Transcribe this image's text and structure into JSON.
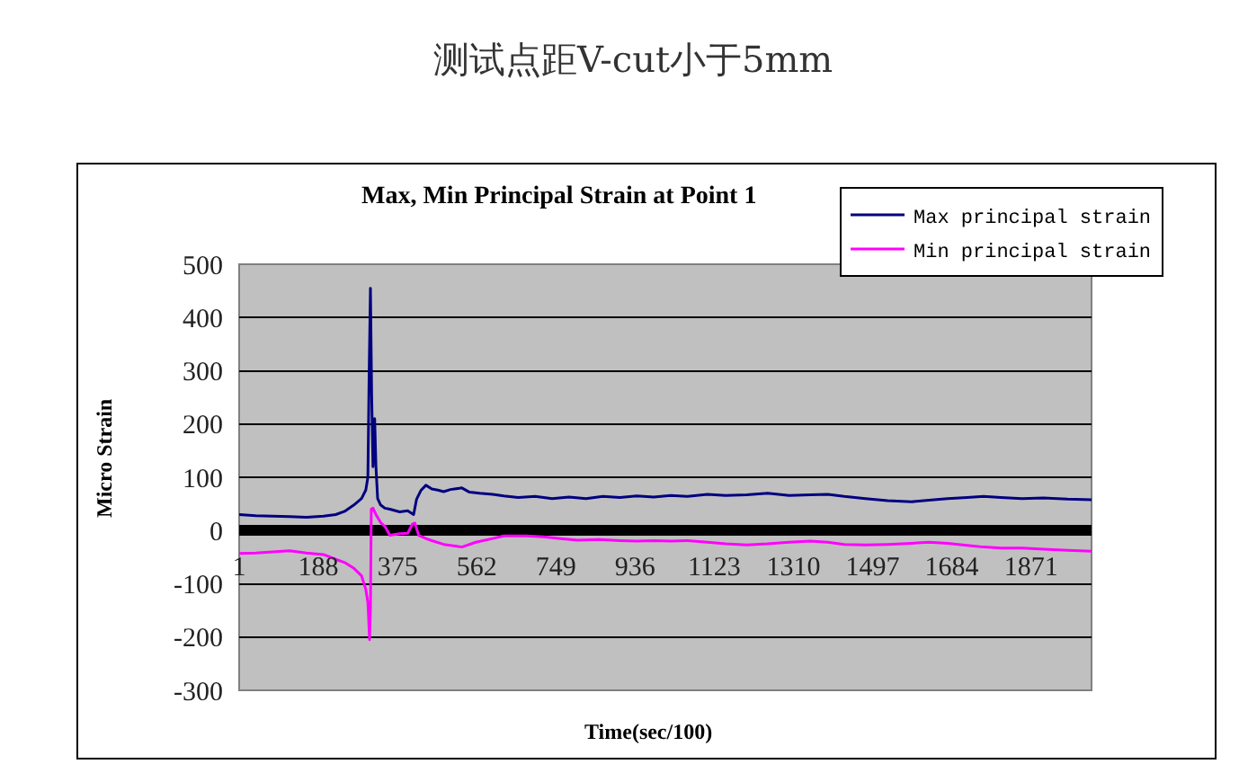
{
  "chart_data": {
    "type": "line",
    "title": "测试点距V-cut小于5mm",
    "subtitle": "Max, Min Principal Strain at Point 1",
    "xlabel": "Time(sec/100)",
    "ylabel": "Micro Strain",
    "xlim": [
      1,
      2014
    ],
    "xticks": [
      1,
      188,
      375,
      562,
      749,
      936,
      1123,
      1310,
      1497,
      1684,
      1871
    ],
    "ylim": [
      -300,
      500
    ],
    "yticks": [
      -300,
      -200,
      -100,
      0,
      100,
      200,
      300,
      400,
      500
    ],
    "grid": "y",
    "legend": "top right",
    "series": [
      {
        "name": "Max principal strain",
        "color": "#000080",
        "x": [
          1,
          40,
          80,
          120,
          160,
          200,
          229,
          250,
          272,
          290,
          300,
          305,
          308,
          311,
          314,
          317,
          319,
          321,
          324,
          328,
          335,
          345,
          357,
          380,
          399,
          413,
          420,
          430,
          442,
          456,
          470,
          484,
          500,
          527,
          545,
          569,
          600,
          626,
          660,
          700,
          740,
          780,
          820,
          860,
          900,
          940,
          980,
          1020,
          1060,
          1107,
          1150,
          1200,
          1249,
          1300,
          1350,
          1391,
          1430,
          1480,
          1532,
          1589,
          1630,
          1674,
          1720,
          1759,
          1800,
          1850,
          1900,
          1957,
          2014
        ],
        "values": [
          30,
          28,
          27,
          26,
          25,
          27,
          30,
          36,
          48,
          60,
          76,
          100,
          300,
          455,
          250,
          120,
          160,
          210,
          120,
          60,
          48,
          42,
          40,
          35,
          37,
          30,
          59,
          75,
          85,
          78,
          76,
          73,
          77,
          80,
          72,
          70,
          68,
          65,
          62,
          64,
          60,
          63,
          60,
          64,
          62,
          65,
          63,
          66,
          64,
          68,
          66,
          67,
          70,
          66,
          67,
          68,
          64,
          60,
          56,
          54,
          57,
          60,
          62,
          64,
          62,
          60,
          61,
          59,
          58
        ]
      },
      {
        "name": "Min principal strain",
        "color": "#ff00ff",
        "x": [
          1,
          40,
          80,
          120,
          160,
          200,
          229,
          250,
          272,
          290,
          300,
          305,
          309,
          311,
          313,
          317,
          324,
          335,
          345,
          357,
          380,
          399,
          410,
          416,
          425,
          442,
          456,
          484,
          527,
          560,
          600,
          626,
          680,
          720,
          760,
          800,
          850,
          900,
          940,
          980,
          1020,
          1060,
          1107,
          1150,
          1200,
          1249,
          1300,
          1350,
          1391,
          1430,
          1480,
          1532,
          1589,
          1630,
          1674,
          1720,
          1759,
          1800,
          1850,
          1900,
          1957,
          2014
        ],
        "values": [
          -43,
          -42,
          -40,
          -38,
          -42,
          -45,
          -54,
          -60,
          -71,
          -85,
          -110,
          -135,
          -205,
          -150,
          40,
          42,
          30,
          15,
          8,
          -9,
          -6,
          -5,
          12,
          14,
          -9,
          -15,
          -19,
          -26,
          -31,
          -22,
          -15,
          -10,
          -10,
          -12,
          -15,
          -18,
          -17,
          -19,
          -20,
          -19,
          -20,
          -19,
          -22,
          -25,
          -27,
          -25,
          -22,
          -20,
          -22,
          -26,
          -27,
          -26,
          -24,
          -22,
          -24,
          -28,
          -31,
          -33,
          -33,
          -35,
          -37,
          -39
        ]
      }
    ]
  }
}
